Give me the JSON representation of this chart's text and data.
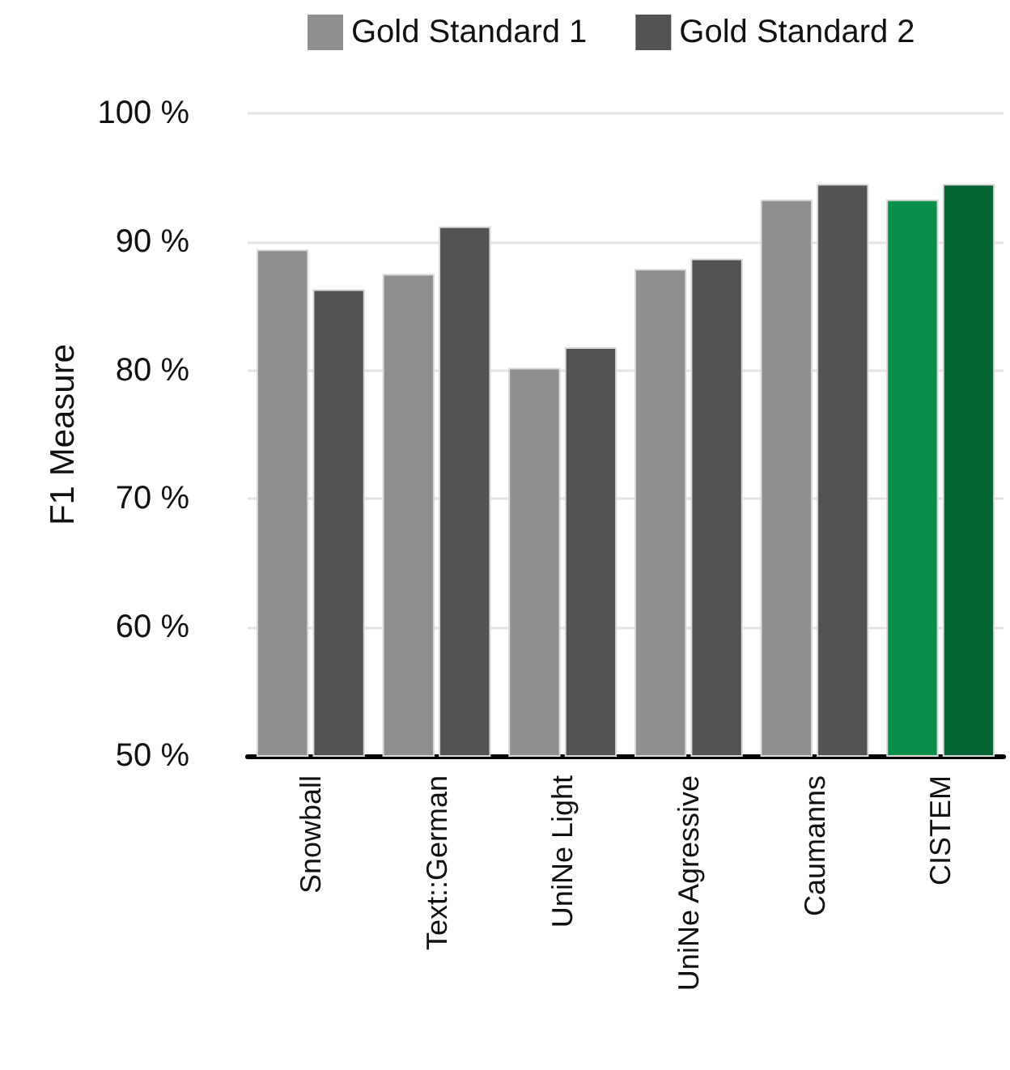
{
  "chart_data": {
    "type": "bar",
    "ylabel": "F1 Measure",
    "categories": [
      "Snowball",
      "Text::German",
      "UniNe Light",
      "UniNe Agressive",
      "Caumanns",
      "CISTEM"
    ],
    "series": [
      {
        "name": "Gold Standard 1",
        "color": "#8f8f8f",
        "colors": [
          "#8f8f8f",
          "#8f8f8f",
          "#8f8f8f",
          "#8f8f8f",
          "#8f8f8f",
          "#0a8f4a"
        ],
        "values": [
          89.4,
          87.5,
          80.2,
          87.9,
          93.3,
          93.3
        ]
      },
      {
        "name": "Gold Standard 2",
        "color": "#535353",
        "colors": [
          "#535353",
          "#535353",
          "#535353",
          "#535353",
          "#535353",
          "#066633"
        ],
        "values": [
          86.3,
          91.2,
          81.8,
          88.7,
          94.5,
          94.5
        ]
      }
    ],
    "ylim": [
      50,
      100
    ],
    "yticks": [
      {
        "value": 50,
        "label": "50 %"
      },
      {
        "value": 60,
        "label": "60 %"
      },
      {
        "value": 70,
        "label": "70 %"
      },
      {
        "value": 80,
        "label": "80 %"
      },
      {
        "value": 90,
        "label": "90 %"
      },
      {
        "value": 100,
        "label": "100 %"
      }
    ],
    "grid": "y",
    "legend": "top"
  }
}
